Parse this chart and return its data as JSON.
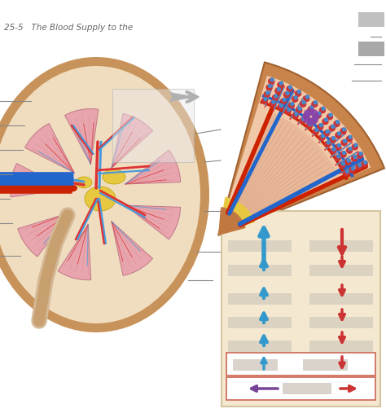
{
  "bg_color": "#ffffff",
  "kidney_capsule": "#c8935a",
  "kidney_body": "#f0ddc0",
  "pyramid_face": "#e8a5ad",
  "pyramid_edge": "#c07888",
  "pelvis_color": "#e8c840",
  "artery_red": "#cc2200",
  "vein_blue": "#2266cc",
  "vessel_red": "#dd3333",
  "vessel_blue": "#4499dd",
  "ureter_color": "#d4b896",
  "label_line_color": "#888888",
  "title_text": "25-5   The Blood Supply to the",
  "arrow_gray": "#b0b0b0",
  "cortex_brown": "#c8844a",
  "pyramid_tissue": "#f0c8a8",
  "medulla_stripe": "#e0b090",
  "glom_red": "#cc3333",
  "glom_blue": "#4488cc",
  "glom_purple": "#8844aa",
  "flow_panel_bg": "#f5e8d0",
  "flow_blue": "#3399cc",
  "flow_red": "#cc3333",
  "flow_purple": "#774499",
  "flow_box_border": "#cc6655",
  "blur_gray": "#c8c0b8",
  "blur_dark": "#d0c8c0"
}
